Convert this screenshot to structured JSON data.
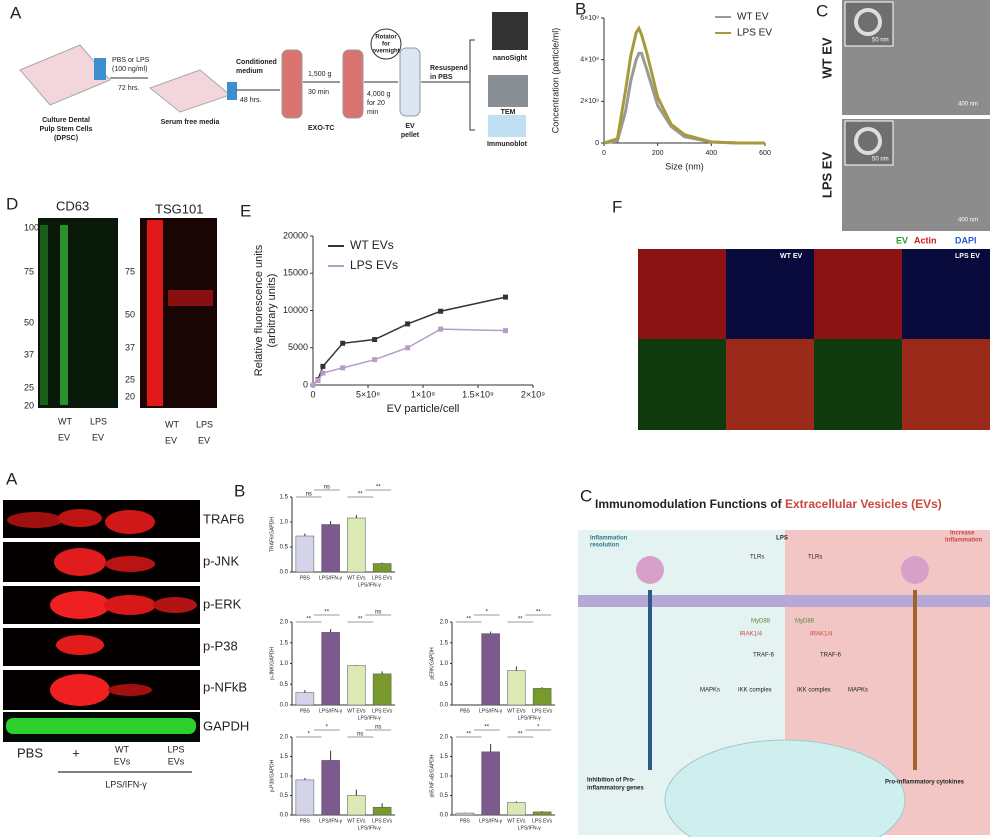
{
  "panel_labels": [
    "A",
    "B",
    "C",
    "D",
    "E",
    "F",
    "A",
    "B",
    "C"
  ],
  "workflow": {
    "lines": [
      "PBS or LPS",
      "(100 ng/ml)",
      "72 hrs.",
      "Culture Dental",
      "Pulp Stem Cells",
      "(DPSC)",
      "Serum free media",
      "Conditioned",
      "medium",
      "48 hrs.",
      "1,500 g",
      "30 min",
      "EXO-TC",
      "Rotator",
      "for",
      "overnight",
      "4,000 g",
      "for 20",
      "min",
      "EV",
      "pellet",
      "Resuspend",
      "in PBS",
      "nanoSight",
      "TEM",
      "Immunoblot"
    ]
  },
  "tem": {
    "labels": [
      "WT EV",
      "LPS EV"
    ],
    "scale_bars": [
      "50 nm",
      "400 nm",
      "50 nm",
      "400 nm"
    ]
  },
  "blots": {
    "titles": [
      "CD63",
      "TSG101"
    ],
    "markers_left": [
      "100",
      "75",
      "50",
      "37",
      "25",
      "20"
    ],
    "markers_right": [
      "75",
      "50",
      "37",
      "25",
      "20"
    ],
    "lanes_left": [
      "WT",
      "EV",
      "LPS",
      "EV"
    ],
    "lanes_right": [
      "WT",
      "EV",
      "LPS",
      "EV"
    ]
  },
  "fluorescence": {
    "legend": [
      "EV",
      "Actin",
      "DAPI"
    ],
    "labels": [
      "WT EV",
      "LPS EV"
    ]
  },
  "western": {
    "proteins": [
      "TRAF6",
      "p-JNK",
      "p-ERK",
      "p-P38",
      "p-NFkB",
      "GAPDH"
    ],
    "lanes": [
      "PBS",
      "+",
      "WT",
      "EVs",
      "LPS",
      "EVs"
    ],
    "treatment": "LPS/IFN-γ"
  },
  "diagram": {
    "title": "Immunomodulation Functions of ",
    "title_highlight": "Extracellular Vesicles (EVs)",
    "labels": [
      "Inflammation",
      "resolution",
      "Increase",
      "Inflammation",
      "LPS",
      "TLRs",
      "TLRs",
      "MyD88",
      "MyD88",
      "IRAK1/4",
      "IRAK1/4",
      "TRAF-6",
      "TRAF-6",
      "MAPKs",
      "IKK complex",
      "IKK complex",
      "MAPKs",
      "Inhibition of Pro-",
      "inflammatory genes",
      "Pro-inflammatory cytokines"
    ]
  },
  "chart_data": [
    {
      "type": "line",
      "ylabel": "Concentration (particle/ml)",
      "xlabel": "Size (nm)",
      "x": [
        0,
        50,
        80,
        100,
        120,
        130,
        140,
        160,
        200,
        250,
        300,
        400,
        500,
        600
      ],
      "series": [
        {
          "name": "WT EV",
          "color": "#9a9a9a",
          "values": [
            0,
            100000000,
            1500000000,
            3000000000,
            4000000000,
            4300000000,
            4300000000,
            3500000000,
            1800000000,
            800000000,
            300000000,
            50000000,
            0,
            0
          ]
        },
        {
          "name": "LPS EV",
          "color": "#a89a3c",
          "values": [
            0,
            200000000,
            2500000000,
            4200000000,
            5300000000,
            5500000000,
            5200000000,
            4300000000,
            2200000000,
            900000000,
            400000000,
            50000000,
            0,
            0
          ]
        }
      ],
      "xlim": [
        0,
        600
      ],
      "xticks": [
        0,
        200,
        400,
        600
      ],
      "ylim": [
        0,
        6000000000
      ],
      "yticks": [
        0,
        {
          "value": 2000000000,
          "label": "2×10⁹"
        },
        {
          "value": 4000000000,
          "label": "4×10⁹"
        },
        {
          "value": 6000000000,
          "label": "6×10⁹"
        }
      ]
    },
    {
      "type": "line",
      "ylabel": [
        "Relative fluorescence units",
        "(arbitrary units)"
      ],
      "xlabel": "EV particle/cell",
      "markers": true,
      "x": [
        0,
        45000000,
        90000000,
        270000000,
        560000000,
        860000000,
        1160000000,
        1750000000
      ],
      "series": [
        {
          "name": "WT EVs",
          "color": "#333333",
          "values": [
            0,
            700,
            2500,
            5600,
            6100,
            8200,
            9900,
            11800
          ]
        },
        {
          "name": "LPS EVs",
          "color": "#b79cc9",
          "values": [
            0,
            600,
            1600,
            2300,
            3400,
            5000,
            7500,
            7300
          ]
        }
      ],
      "xlim": [
        0,
        2000000000
      ],
      "xticks": [
        0,
        {
          "value": 500000000,
          "label": "5×10⁸"
        },
        {
          "value": 1000000000,
          "label": "1×10⁹"
        },
        {
          "value": 1500000000,
          "label": "1.5×10⁹"
        },
        {
          "value": 2000000000,
          "label": "2×10⁹"
        }
      ],
      "ylim": [
        0,
        20000
      ],
      "yticks": [
        0,
        5000,
        10000,
        15000,
        20000
      ]
    },
    {
      "type": "bar",
      "ylabel": "TRAF6/GAPDH",
      "group_label": "LPS/IFN-γ",
      "categories": [
        "PBS",
        "LPS/IFN-γ",
        "WT EVs",
        "LPS EVs"
      ],
      "colors": [
        "#d3d3ea",
        "#7d5a8e",
        "#dbe9b5",
        "#78992c"
      ],
      "values": [
        0.72,
        0.95,
        1.08,
        0.17
      ],
      "errors": [
        0.05,
        0.07,
        0.06,
        0.02
      ],
      "annotations": [
        "ns",
        "ns",
        "**",
        "**"
      ],
      "ylim": [
        0,
        1.5
      ],
      "yticks": [
        {
          "value": 0,
          "label": "0.0"
        },
        {
          "value": 0.5,
          "label": "0.5"
        },
        {
          "value": 1,
          "label": "1.0"
        },
        {
          "value": 1.5,
          "label": "1.5"
        }
      ]
    },
    {
      "type": "bar",
      "ylabel": "p-JNK/GAPDH",
      "group_label": "LPS/IFN-γ",
      "categories": [
        "PBS",
        "LPS/IFN-γ",
        "WT EVs",
        "LPS EVs"
      ],
      "colors": [
        "#d3d3ea",
        "#7d5a8e",
        "#dbe9b5",
        "#78992c"
      ],
      "values": [
        0.3,
        1.75,
        0.95,
        0.75
      ],
      "errors": [
        0.06,
        0.08,
        0.01,
        0.06
      ],
      "annotations": [
        "**",
        "**",
        "**",
        "ns"
      ],
      "ylim": [
        0,
        2
      ],
      "yticks": [
        {
          "value": 0,
          "label": "0.0"
        },
        {
          "value": 0.5,
          "label": "0.5"
        },
        {
          "value": 1,
          "label": "1.0"
        },
        {
          "value": 1.5,
          "label": "1.5"
        },
        {
          "value": 2,
          "label": "2.0"
        }
      ]
    },
    {
      "type": "bar",
      "ylabel": "pERK/GAPDH",
      "group_label": "LPS/IFN-γ",
      "categories": [
        "PBS",
        "LPS/IFN-γ",
        "WT EVs",
        "LPS EVs"
      ],
      "colors": [
        "#d3d3ea",
        "#7d5a8e",
        "#dbe9b5",
        "#78992c"
      ],
      "values": [
        0,
        1.72,
        0.83,
        0.4
      ],
      "errors": [
        0,
        0.05,
        0.1,
        0.03
      ],
      "annotations": [
        "**",
        "*",
        "**",
        "**"
      ],
      "ylim": [
        0,
        2
      ],
      "yticks": [
        {
          "value": 0,
          "label": "0.0"
        },
        {
          "value": 0.5,
          "label": "0.5"
        },
        {
          "value": 1,
          "label": "1.0"
        },
        {
          "value": 1.5,
          "label": "1.5"
        },
        {
          "value": 2,
          "label": "2.0"
        }
      ]
    },
    {
      "type": "bar",
      "ylabel": "p-P38/GAPDH",
      "group_label": "LPS/IFN-γ",
      "categories": [
        "PBS",
        "LPS/IFN-γ",
        "WT EVs",
        "LPS EVs"
      ],
      "colors": [
        "#d3d3ea",
        "#7d5a8e",
        "#dbe9b5",
        "#78992c"
      ],
      "values": [
        0.9,
        1.4,
        0.5,
        0.2
      ],
      "errors": [
        0.05,
        0.25,
        0.15,
        0.1
      ],
      "annotations": [
        "*",
        "*",
        "ns",
        "ns"
      ],
      "ylim": [
        0,
        2
      ],
      "yticks": [
        {
          "value": 0,
          "label": "0.0"
        },
        {
          "value": 0.5,
          "label": "0.5"
        },
        {
          "value": 1,
          "label": "1.0"
        },
        {
          "value": 1.5,
          "label": "1.5"
        },
        {
          "value": 2,
          "label": "2.0"
        }
      ]
    },
    {
      "type": "bar",
      "ylabel": "p65 NF-κB/GAPDH",
      "group_label": "LPS/IFN-γ",
      "categories": [
        "PBS",
        "LPS/IFN-γ",
        "WT EVs",
        "LPS EVs"
      ],
      "colors": [
        "#d3d3ea",
        "#7d5a8e",
        "#dbe9b5",
        "#78992c"
      ],
      "values": [
        0.05,
        1.62,
        0.32,
        0.08
      ],
      "errors": [
        0.01,
        0.2,
        0.03,
        0.02
      ],
      "annotations": [
        "**",
        "**",
        "**",
        "*"
      ],
      "ylim": [
        0,
        2
      ],
      "yticks": [
        {
          "value": 0,
          "label": "0.0"
        },
        {
          "value": 0.5,
          "label": "0.5"
        },
        {
          "value": 1,
          "label": "1.0"
        },
        {
          "value": 1.5,
          "label": "1.5"
        },
        {
          "value": 2,
          "label": "2.0"
        }
      ]
    }
  ]
}
